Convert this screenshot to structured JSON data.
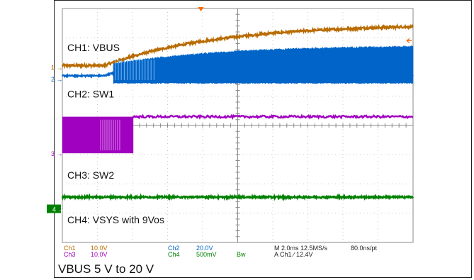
{
  "chart_data": {
    "type": "line",
    "title": "",
    "xlabel": "",
    "ylabel": "",
    "grid": true,
    "divisions": {
      "x": 10,
      "y": 8
    },
    "trigger_marker_color": "#ff6600",
    "series": [
      {
        "name": "CH1: VBUS",
        "marker": "1",
        "color": "#b86b00",
        "kind": "ramp",
        "y_start_div": 6.05,
        "y_end_div": 7.38,
        "ramp_start_div": 1.2,
        "tau_div": 3.2,
        "noise_div": 0.04
      },
      {
        "name": "CH2: SW1",
        "marker": "2",
        "color": "#0064c8",
        "kind": "switching",
        "y_base_div": 5.7,
        "y_final_top_div": 6.7,
        "ramp_start_div": 1.2,
        "burst_start_div": 1.45,
        "tau_div": 3.2
      },
      {
        "name": "CH3: SW2",
        "marker": "3",
        "color": "#a000c0",
        "kind": "switching_stop",
        "y_low_div": 3.05,
        "y_high_div": 4.3,
        "stop_div": 2.0,
        "noise_div": 0.04
      },
      {
        "name": "CH4: VSYS with 9Vos",
        "marker": "4",
        "color": "#008000",
        "kind": "flat",
        "y_div": 1.55,
        "noise_div": 0.03
      }
    ],
    "settings": {
      "ch1": {
        "name": "Ch1",
        "scale": "10.0V",
        "color": "#b86b00"
      },
      "ch3": {
        "name": "Ch3",
        "scale": "10.0V",
        "color": "#a000c0"
      },
      "ch2": {
        "name": "Ch2",
        "scale": "20.0V",
        "color": "#0064c8"
      },
      "ch4": {
        "name": "Ch4",
        "scale": "500mV",
        "color": "#008000"
      },
      "bw": "Bw",
      "horizontal": "M 2.0ms 12.5MS/s",
      "resolution": "80.0ns/pt",
      "trigger": "A  Ch1  ∕  12.4V"
    }
  },
  "caption": "VBUS 5 V to 20 V"
}
